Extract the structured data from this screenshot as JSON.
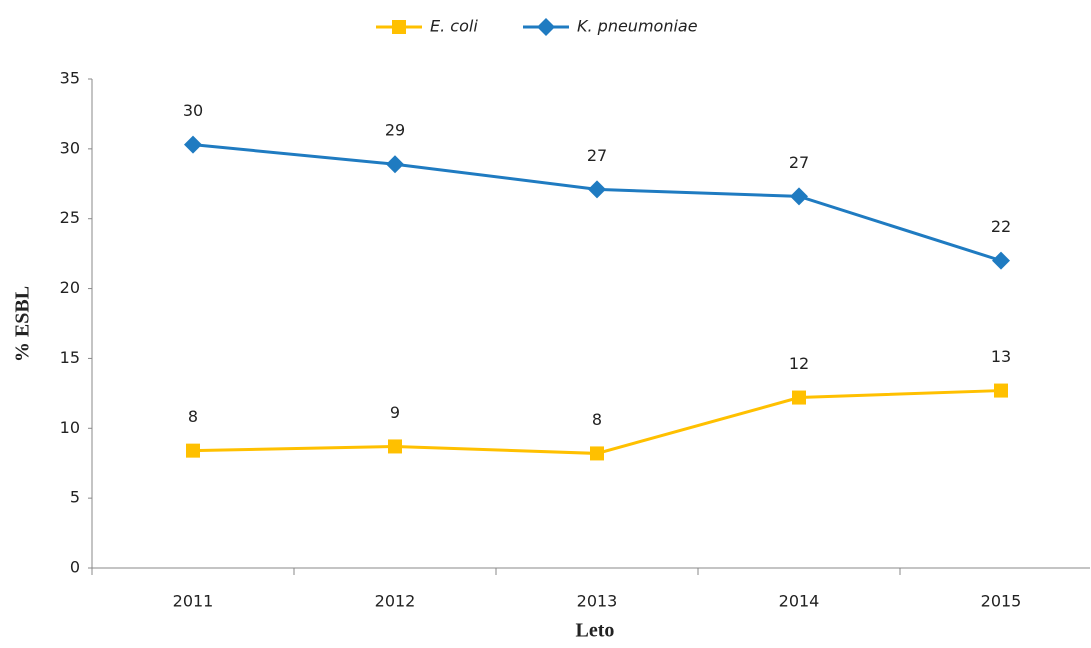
{
  "chart_data": {
    "type": "line",
    "categories": [
      "2011",
      "2012",
      "2013",
      "2014",
      "2015"
    ],
    "series": [
      {
        "name": "E. coli",
        "color": "#FFC000",
        "marker": "square",
        "values": [
          8.4,
          8.7,
          8.2,
          12.2,
          12.7
        ],
        "value_labels": [
          "8",
          "9",
          "8",
          "12",
          "13"
        ]
      },
      {
        "name": "K. pneumoniae",
        "color": "#1F7BC1",
        "marker": "diamond",
        "values": [
          30.3,
          28.9,
          27.1,
          26.6,
          22.0
        ],
        "value_labels": [
          "30",
          "29",
          "27",
          "27",
          "22"
        ]
      }
    ],
    "x_label": "Leto",
    "y_label": "% ESBL",
    "ylim": [
      0,
      35
    ],
    "yticks": [
      0,
      5,
      10,
      15,
      20,
      25,
      30,
      35
    ],
    "grid": false,
    "legend": "top"
  }
}
